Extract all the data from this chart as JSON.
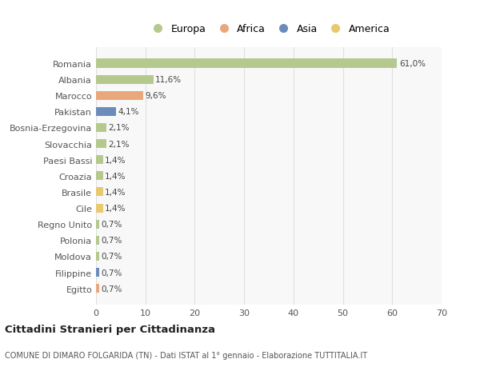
{
  "countries": [
    "Romania",
    "Albania",
    "Marocco",
    "Pakistan",
    "Bosnia-Erzegovina",
    "Slovacchia",
    "Paesi Bassi",
    "Croazia",
    "Brasile",
    "Cile",
    "Regno Unito",
    "Polonia",
    "Moldova",
    "Filippine",
    "Egitto"
  ],
  "values": [
    61.0,
    11.6,
    9.6,
    4.1,
    2.1,
    2.1,
    1.4,
    1.4,
    1.4,
    1.4,
    0.7,
    0.7,
    0.7,
    0.7,
    0.7
  ],
  "labels": [
    "61,0%",
    "11,6%",
    "9,6%",
    "4,1%",
    "2,1%",
    "2,1%",
    "1,4%",
    "1,4%",
    "1,4%",
    "1,4%",
    "0,7%",
    "0,7%",
    "0,7%",
    "0,7%",
    "0,7%"
  ],
  "colors": [
    "#b5c98e",
    "#b5c98e",
    "#e8a87c",
    "#6b8cba",
    "#b5c98e",
    "#b5c98e",
    "#b5c98e",
    "#b5c98e",
    "#e8c96e",
    "#e8c96e",
    "#b5c98e",
    "#b5c98e",
    "#b5c98e",
    "#6b8cba",
    "#e8a87c"
  ],
  "legend_labels": [
    "Europa",
    "Africa",
    "Asia",
    "America"
  ],
  "legend_colors": [
    "#b5c98e",
    "#e8a87c",
    "#6b8cba",
    "#e8c96e"
  ],
  "title": "Cittadini Stranieri per Cittadinanza",
  "subtitle": "COMUNE DI DIMARO FOLGARIDA (TN) - Dati ISTAT al 1° gennaio - Elaborazione TUTTITALIA.IT",
  "xlim": [
    0,
    70
  ],
  "xticks": [
    0,
    10,
    20,
    30,
    40,
    50,
    60,
    70
  ],
  "background_color": "#ffffff",
  "plot_bg_color": "#f8f8f8",
  "grid_color": "#e0e0e0",
  "bar_height": 0.55
}
